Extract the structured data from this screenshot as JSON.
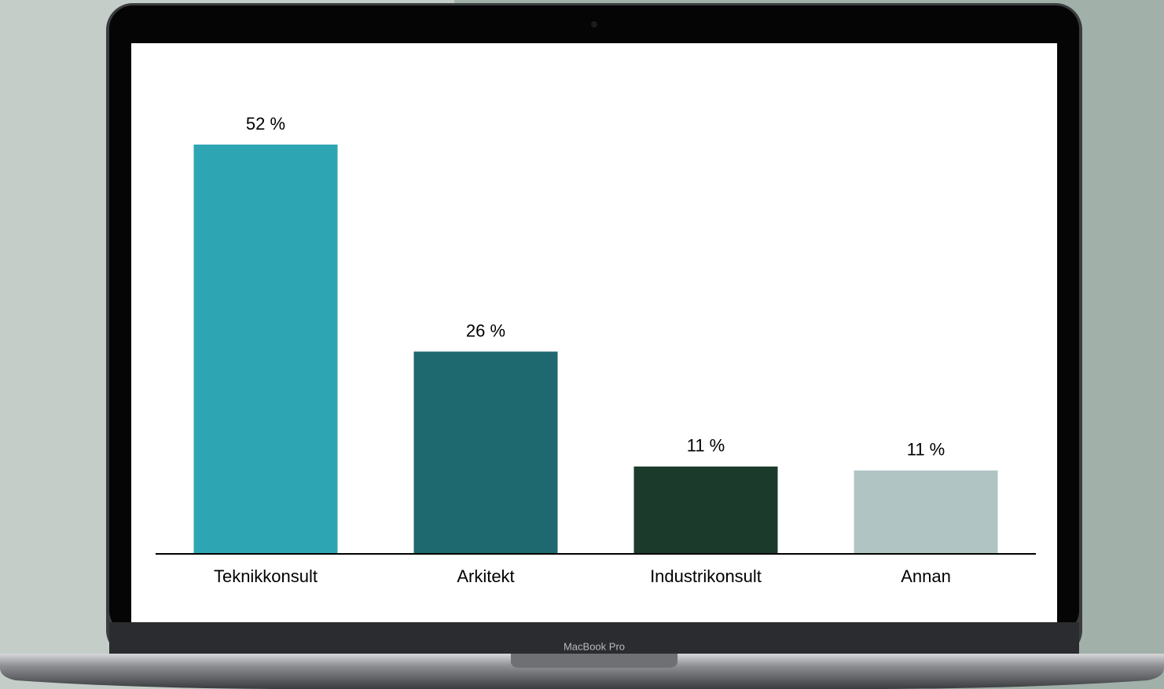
{
  "device_label": "MacBook Pro",
  "chart_data": {
    "type": "bar",
    "categories": [
      "Teknikkonsult",
      "Arkitekt",
      "Industrikonsult",
      "Annan"
    ],
    "values": [
      52,
      25.7,
      11.1,
      10.6
    ],
    "value_labels": [
      "52 %",
      "26 %",
      "11 %",
      "11 %"
    ],
    "colors": [
      "#2ea5b3",
      "#1e686f",
      "#1b3a2b",
      "#b0c4c4"
    ],
    "grid": false
  }
}
